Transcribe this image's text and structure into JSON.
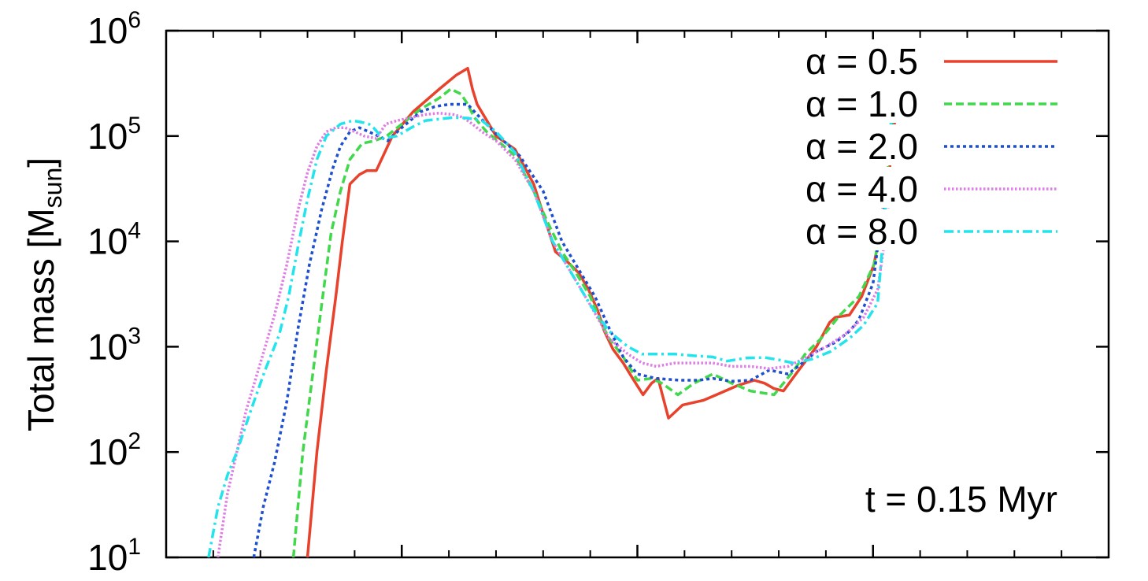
{
  "chart_data": {
    "type": "line",
    "title": "",
    "xlabel": "",
    "ylabel": {
      "text": "Total mass [M",
      "subscript": "sun",
      "close": "]"
    },
    "yscale": "log",
    "ylim": [
      10,
      1000000
    ],
    "xlim": [
      0,
      100
    ],
    "y_ticks": [
      {
        "base": "10",
        "exp": "1",
        "value": 10
      },
      {
        "base": "10",
        "exp": "2",
        "value": 100
      },
      {
        "base": "10",
        "exp": "3",
        "value": 1000
      },
      {
        "base": "10",
        "exp": "4",
        "value": 10000
      },
      {
        "base": "10",
        "exp": "5",
        "value": 100000
      },
      {
        "base": "10",
        "exp": "6",
        "value": 1000000
      }
    ],
    "x_major_ticks": [
      25,
      50,
      75
    ],
    "x_minor_ticks": [
      5,
      10,
      15,
      20,
      30,
      35,
      40,
      45,
      55,
      60,
      65,
      70,
      80,
      85,
      90,
      95
    ],
    "annotation": "t = 0.15 Myr",
    "legend_position": "top-right",
    "series": [
      {
        "name": "α = 0.5",
        "color": "#e8412c",
        "dash": "solid",
        "x": [
          15.0,
          16.0,
          17.0,
          18.0,
          18.7,
          19.5,
          20.5,
          21.3,
          22.3,
          24.0,
          26.2,
          29.0,
          30.8,
          32.0,
          32.5,
          33.0,
          35.0,
          37.0,
          39.0,
          40.3,
          41.3,
          42.5,
          43.8,
          44.8,
          45.8,
          46.5,
          47.4,
          48.5,
          49.5,
          50.6,
          51.5,
          52.2,
          53.3,
          54.8,
          57.0,
          58.4,
          60.7,
          62.4,
          63.5,
          64.5,
          65.5,
          67.0,
          69.0,
          70.4,
          71.0,
          72.5,
          73.8,
          75.1,
          76.4,
          77.5
        ],
        "y": [
          10,
          100,
          600,
          3000,
          10000,
          35000,
          43000,
          47000,
          47000,
          100000,
          170000,
          280000,
          380000,
          440000,
          280000,
          200000,
          100000,
          75000,
          35000,
          15000,
          8000,
          6500,
          5000,
          3500,
          2200,
          1400,
          950,
          700,
          500,
          350,
          450,
          500,
          210,
          280,
          310,
          350,
          430,
          480,
          450,
          400,
          380,
          580,
          1000,
          1700,
          1900,
          2000,
          3000,
          6000,
          25000,
          200000
        ]
      },
      {
        "name": "α = 1.0",
        "color": "#41d84b",
        "dash": "dashed",
        "x": [
          13.5,
          14.5,
          15.5,
          16.5,
          17.5,
          18.5,
          19.5,
          20.8,
          22.1,
          23.4,
          25.0,
          27.0,
          29.0,
          30.2,
          31.3,
          32.0,
          32.7,
          34.0,
          35.5,
          37.0,
          39.0,
          40.5,
          42.0,
          43.5,
          45.0,
          46.0,
          47.0,
          48.5,
          50.0,
          51.5,
          52.6,
          54.3,
          56.0,
          58.0,
          60.0,
          62.0,
          64.5,
          66.5,
          67.8,
          69.5,
          71.5,
          73.5,
          75.1,
          76.2,
          77.1
        ],
        "y": [
          10,
          100,
          500,
          2500,
          12000,
          30000,
          60000,
          85000,
          90000,
          100000,
          130000,
          180000,
          230000,
          280000,
          250000,
          200000,
          150000,
          110000,
          85000,
          65000,
          30000,
          15000,
          8000,
          5000,
          3000,
          1800,
          1200,
          800,
          480,
          500,
          450,
          350,
          450,
          550,
          450,
          380,
          350,
          580,
          850,
          1200,
          2000,
          3000,
          6000,
          20000,
          150000
        ]
      },
      {
        "name": "α = 2.0",
        "color": "#1d4fd0",
        "dash": "dotted",
        "x": [
          9.3,
          10.3,
          11.5,
          12.8,
          14.0,
          15.2,
          16.5,
          17.7,
          18.5,
          19.5,
          20.5,
          21.5,
          22.5,
          23.5,
          25.0,
          27.0,
          28.5,
          30.0,
          31.0,
          32.0,
          33.0,
          35.0,
          37.5,
          40.0,
          42.0,
          44.0,
          45.5,
          47.0,
          48.5,
          50.0,
          52.0,
          54.5,
          56.5,
          58.0,
          60.0,
          62.0,
          64.0,
          66.0,
          67.5,
          69.0,
          71.0,
          72.5,
          73.5,
          75.0,
          76.0,
          77.1
        ],
        "y": [
          10,
          30,
          80,
          300,
          1500,
          6000,
          20000,
          50000,
          80000,
          110000,
          120000,
          110000,
          100000,
          90000,
          120000,
          170000,
          190000,
          200000,
          200000,
          200000,
          160000,
          105000,
          65000,
          30000,
          10000,
          5000,
          3000,
          1500,
          800,
          550,
          500,
          480,
          480,
          500,
          470,
          480,
          600,
          550,
          700,
          900,
          1100,
          1400,
          1800,
          4000,
          20000,
          150000
        ]
      },
      {
        "name": "α = 4.0",
        "color": "#e07ce6",
        "dash": "dotted-fine",
        "x": [
          5.5,
          6.5,
          7.5,
          8.5,
          10.0,
          11.5,
          12.8,
          14.0,
          15.0,
          16.0,
          17.0,
          18.0,
          19.0,
          20.0,
          21.0,
          22.3,
          23.3,
          24.5,
          26.0,
          27.5,
          29.0,
          30.5,
          31.5,
          32.5,
          33.5,
          35.0,
          37.0,
          39.0,
          41.0,
          43.0,
          45.0,
          47.0,
          49.0,
          50.5,
          52.0,
          54.0,
          56.0,
          58.0,
          60.0,
          62.0,
          64.0,
          66.0,
          68.0,
          70.0,
          72.0,
          74.0,
          75.5,
          76.5,
          77.1
        ],
        "y": [
          10,
          40,
          100,
          250,
          700,
          2000,
          6000,
          20000,
          45000,
          80000,
          110000,
          120000,
          120000,
          110000,
          100000,
          95000,
          130000,
          140000,
          150000,
          160000,
          165000,
          160000,
          150000,
          130000,
          110000,
          90000,
          60000,
          30000,
          10000,
          5000,
          2500,
          1200,
          850,
          700,
          650,
          700,
          700,
          700,
          650,
          650,
          620,
          650,
          800,
          1000,
          1300,
          1900,
          3500,
          15000,
          120000
        ]
      },
      {
        "name": "α = 8.0",
        "color": "#22e4ec",
        "dash": "dashdot",
        "x": [
          4.5,
          5.5,
          6.5,
          7.5,
          9.0,
          10.5,
          12.0,
          13.0,
          14.0,
          15.0,
          16.0,
          17.0,
          18.5,
          19.8,
          20.8,
          21.5,
          22.0,
          23.0,
          24.5,
          26.0,
          27.5,
          29.0,
          30.5,
          32.0,
          33.5,
          35.0,
          37.0,
          39.0,
          41.0,
          43.0,
          45.0,
          47.0,
          49.0,
          50.5,
          52.0,
          54.0,
          56.0,
          58.0,
          59.5,
          61.5,
          63.5,
          65.0,
          66.5,
          68.5,
          70.5,
          72.5,
          74.0,
          75.5,
          76.2,
          77.1
        ],
        "y": [
          10,
          30,
          60,
          100,
          250,
          600,
          1300,
          3000,
          9000,
          25000,
          60000,
          100000,
          130000,
          140000,
          135000,
          130000,
          120000,
          95000,
          100000,
          120000,
          140000,
          145000,
          150000,
          148000,
          140000,
          110000,
          70000,
          30000,
          10000,
          5000,
          2500,
          1400,
          1000,
          850,
          850,
          850,
          820,
          800,
          730,
          780,
          790,
          750,
          700,
          760,
          900,
          1200,
          1600,
          2600,
          15000,
          250000
        ]
      }
    ]
  }
}
